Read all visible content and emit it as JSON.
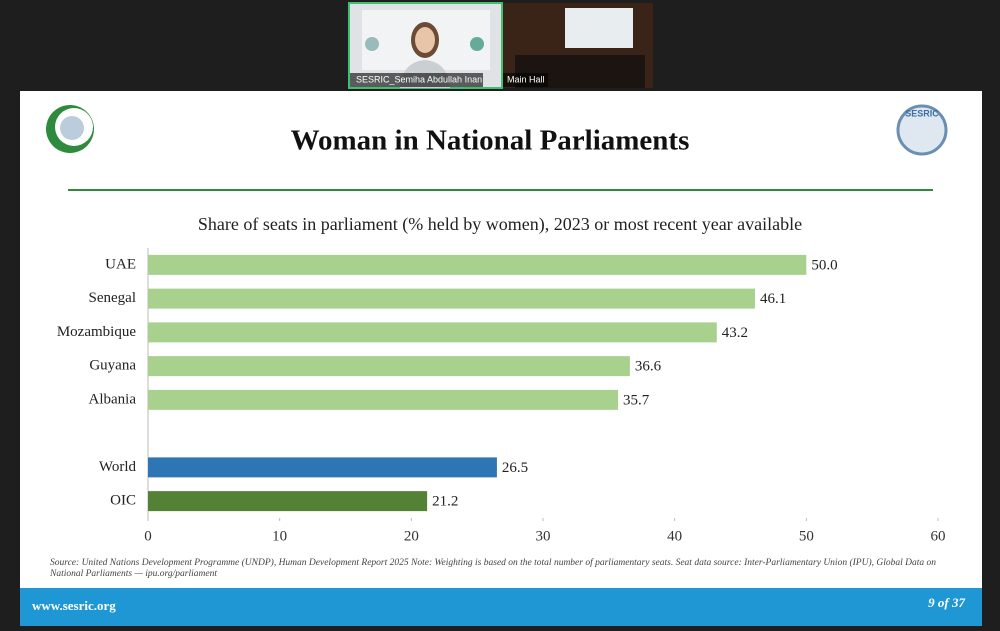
{
  "video_tiles": [
    {
      "label": "SESRIC_Semiha Abdullah Inan"
    },
    {
      "label": "Main Hall"
    }
  ],
  "slide": {
    "footer_url": "www.sesric.org",
    "page": "9 of 37",
    "source": "Source: United Nations Development Programme (UNDP), Human Development Report 2025 Note: Weighting is based on the total number of parliamentary seats. Seat data source: Inter-Parliamentary Union (IPU), Global Data on National Parliaments — ipu.org/parliament"
  },
  "chart_data": {
    "type": "hbar",
    "title": "Woman in National Parliaments",
    "subtitle": "Share of seats in parliament (% held by women), 2023 or most recent year available",
    "categories": [
      "UAE",
      "Senegal",
      "Mozambique",
      "Guyana",
      "Albania",
      null,
      "World",
      "OIC"
    ],
    "values": [
      50.0,
      46.1,
      43.2,
      36.6,
      35.7,
      null,
      26.5,
      21.2
    ],
    "value_labels": [
      "50.0",
      "46.1",
      "43.2",
      "36.6",
      "35.7",
      null,
      "26.5",
      "21.2"
    ],
    "colors": [
      "#a9d18e",
      "#a9d18e",
      "#a9d18e",
      "#a9d18e",
      "#a9d18e",
      null,
      "#2e75b6",
      "#548235"
    ],
    "xlim": [
      0,
      60
    ],
    "xticks": [
      0,
      10,
      20,
      30,
      40,
      50,
      60
    ]
  }
}
